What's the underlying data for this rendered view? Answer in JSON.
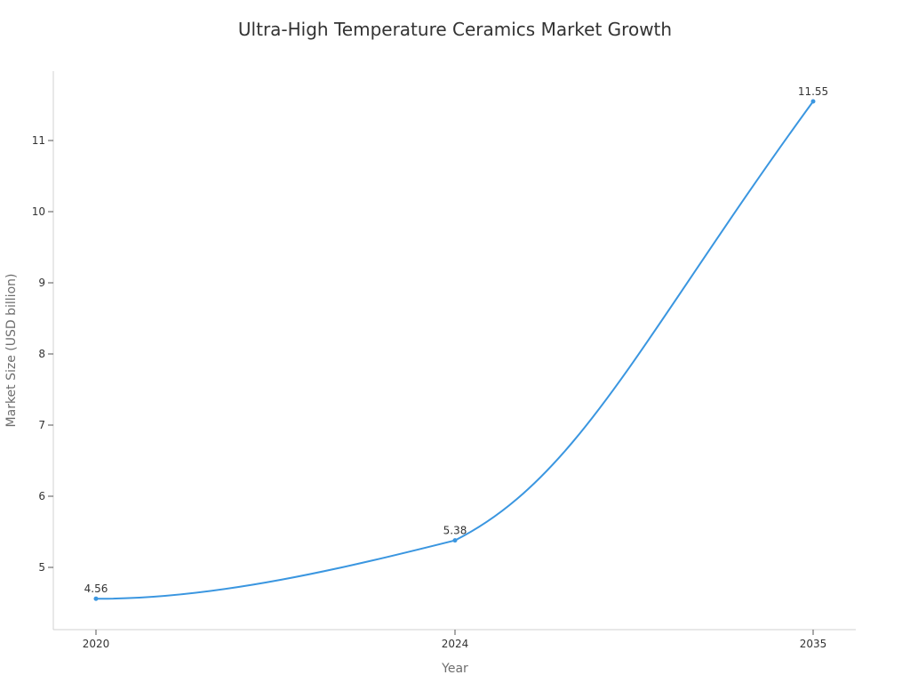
{
  "chart_data": {
    "type": "line",
    "title": "Ultra-High Temperature Ceramics Market Growth",
    "xlabel": "Year",
    "ylabel": "Market Size (USD billion)",
    "categories": [
      "2020",
      "2024",
      "2035"
    ],
    "series": [
      {
        "name": "Market Size",
        "values": [
          4.56,
          5.38,
          11.55
        ],
        "color": "#3a96e0"
      }
    ],
    "data_labels": [
      "4.56",
      "5.38",
      "11.55"
    ],
    "y_ticks": [
      "5",
      "6",
      "7",
      "8",
      "9",
      "10",
      "11"
    ],
    "ylim": [
      4.12,
      11.98
    ],
    "grid": false,
    "legend": "none",
    "smooth": true
  }
}
